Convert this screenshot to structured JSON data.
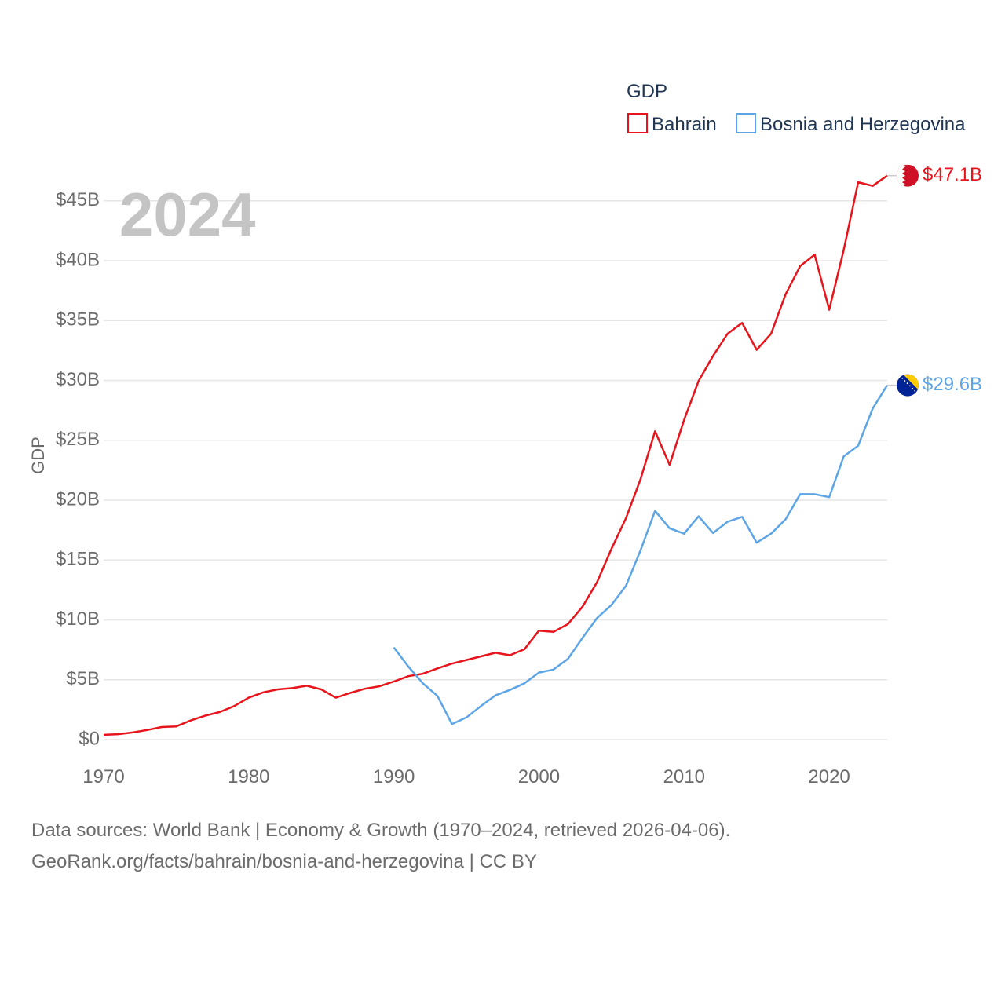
{
  "chart_data": {
    "type": "line",
    "title": "GDP",
    "year_label": "2024",
    "ylabel": "GDP",
    "xlabel": "",
    "xlim": [
      1970,
      2024
    ],
    "ylim": [
      0,
      48
    ],
    "x_ticks": [
      1970,
      1980,
      1990,
      2000,
      2010,
      2020
    ],
    "y_ticks": [
      0,
      5,
      10,
      15,
      20,
      25,
      30,
      35,
      40,
      45
    ],
    "y_tick_labels": [
      "$0",
      "$5B",
      "$10B",
      "$15B",
      "$20B",
      "$25B",
      "$30B",
      "$35B",
      "$40B",
      "$45B"
    ],
    "grid": true,
    "legend_position": "top-right",
    "series": [
      {
        "name": "Bahrain",
        "color": "#e8141c",
        "end_label": "$47.1B",
        "flag": "bahrain-flag",
        "x": [
          1970,
          1971,
          1972,
          1973,
          1974,
          1975,
          1976,
          1977,
          1978,
          1979,
          1980,
          1981,
          1982,
          1983,
          1984,
          1985,
          1986,
          1987,
          1988,
          1989,
          1990,
          1991,
          1992,
          1993,
          1994,
          1995,
          1996,
          1997,
          1998,
          1999,
          2000,
          2001,
          2002,
          2003,
          2004,
          2005,
          2006,
          2007,
          2008,
          2009,
          2010,
          2011,
          2012,
          2013,
          2014,
          2015,
          2016,
          2017,
          2018,
          2019,
          2020,
          2021,
          2022,
          2023,
          2024
        ],
        "values": [
          0.4,
          0.45,
          0.6,
          0.8,
          1.05,
          1.1,
          1.6,
          2.0,
          2.3,
          2.8,
          3.5,
          3.95,
          4.2,
          4.3,
          4.5,
          4.2,
          3.5,
          3.9,
          4.25,
          4.45,
          4.85,
          5.3,
          5.5,
          5.95,
          6.35,
          6.65,
          6.95,
          7.25,
          7.05,
          7.55,
          9.1,
          9.0,
          9.65,
          11.1,
          13.15,
          15.95,
          18.5,
          21.75,
          25.75,
          22.95,
          26.7,
          29.95,
          32.05,
          33.9,
          34.8,
          32.55,
          33.9,
          37.2,
          39.55,
          40.5,
          35.9,
          40.9,
          46.55,
          46.25,
          47.1
        ]
      },
      {
        "name": "Bosnia and Herzegovina",
        "color": "#5ea5e6",
        "end_label": "$29.6B",
        "flag": "bosnia-flag",
        "x": [
          1990,
          1991,
          1992,
          1993,
          1994,
          1995,
          1996,
          1997,
          1998,
          1999,
          2000,
          2001,
          2002,
          2003,
          2004,
          2005,
          2006,
          2007,
          2008,
          2009,
          2010,
          2011,
          2012,
          2013,
          2014,
          2015,
          2016,
          2017,
          2018,
          2019,
          2020,
          2021,
          2022,
          2023,
          2024
        ],
        "values": [
          7.7,
          6.1,
          4.7,
          3.65,
          1.3,
          1.85,
          2.8,
          3.7,
          4.15,
          4.7,
          5.6,
          5.85,
          6.75,
          8.5,
          10.15,
          11.25,
          12.85,
          15.8,
          19.1,
          17.65,
          17.2,
          18.65,
          17.25,
          18.2,
          18.6,
          16.45,
          17.2,
          18.4,
          20.5,
          20.5,
          20.25,
          23.65,
          24.55,
          27.65,
          29.6
        ]
      }
    ]
  },
  "footer": {
    "line1": "Data sources: World Bank | Economy & Growth (1970–2024, retrieved 2026-04-06).",
    "line2": "GeoRank.org/facts/bahrain/bosnia-and-herzegovina | CC BY"
  }
}
